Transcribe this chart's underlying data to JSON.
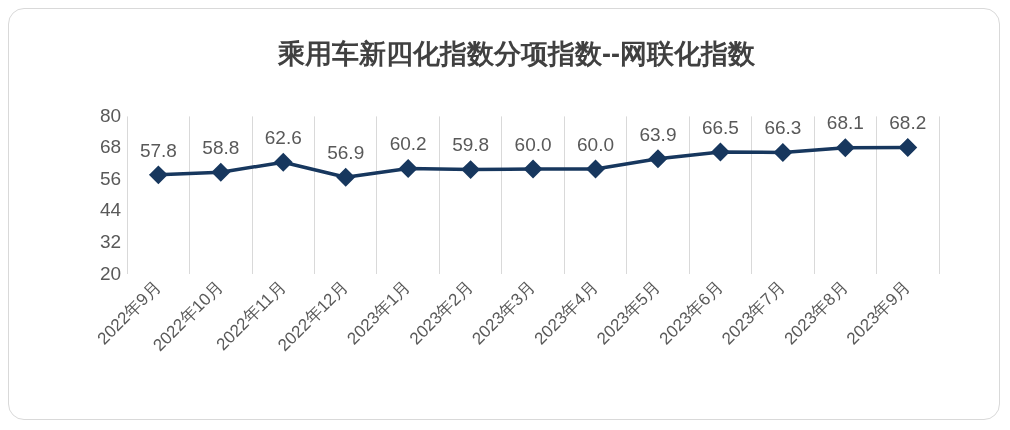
{
  "chart_data": {
    "type": "line",
    "title": "乘用车新四化指数分项指数--网联化指数",
    "categories": [
      "2022年9月",
      "2022年10月",
      "2022年11月",
      "2022年12月",
      "2023年1月",
      "2023年2月",
      "2023年3月",
      "2023年4月",
      "2023年5月",
      "2023年6月",
      "2023年7月",
      "2023年8月",
      "2023年9月"
    ],
    "series": [
      {
        "color": "#17375e",
        "values": [
          57.8,
          58.8,
          62.6,
          56.9,
          60.2,
          59.8,
          60.0,
          60.0,
          63.9,
          66.5,
          66.3,
          68.1,
          68.2
        ]
      }
    ],
    "value_labels": [
      "57.8",
      "58.8",
      "62.6",
      "56.9",
      "60.2",
      "59.8",
      "60.0",
      "60.0",
      "63.9",
      "66.5",
      "66.3",
      "68.1",
      "68.2"
    ],
    "ylim": [
      20,
      80
    ],
    "yticks": [
      20,
      32,
      44,
      56,
      68,
      80
    ],
    "grid": "x",
    "legend": false,
    "marker": "diamond",
    "line_style": "solid"
  }
}
